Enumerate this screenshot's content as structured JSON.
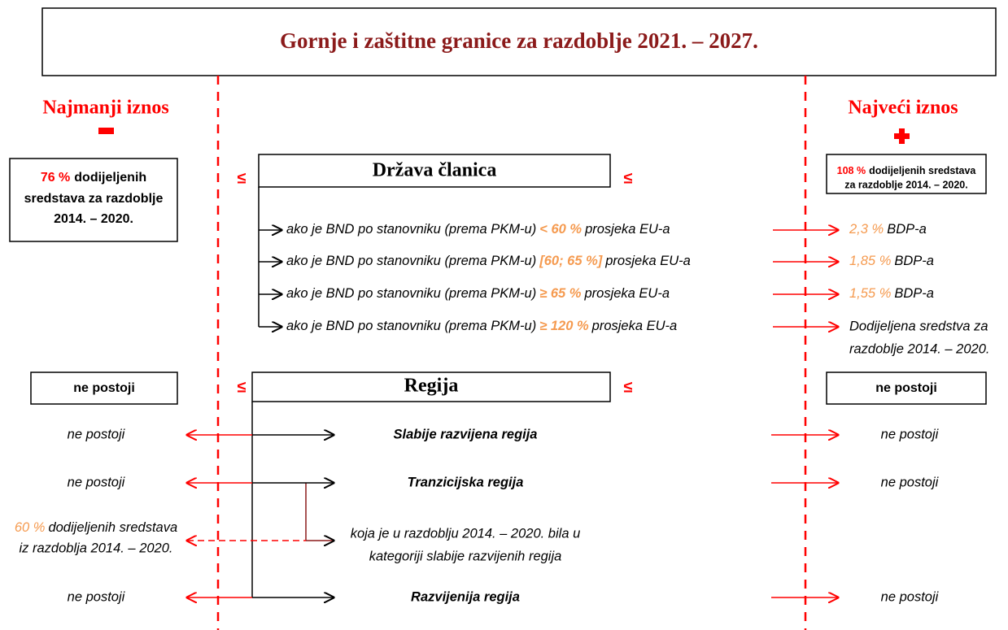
{
  "title": "Gornje i zaštitne granice za razdoblje 2021. – 2027.",
  "min_label": "Najmanji iznos",
  "max_label": "Najveći iznos",
  "leq": "≤",
  "member_state": {
    "label": "Država članica",
    "min_box": {
      "highlight": "76 %",
      "lines": [
        "dodijeljenih",
        "sredstava za razdoblje",
        "2014. – 2020."
      ]
    },
    "max_box": {
      "highlight": "108 %",
      "lines": [
        "dodijeljenih sredstava",
        "za razdoblje 2014. – 2020."
      ]
    },
    "rows": [
      {
        "prefix": "ako je BND po stanovniku (prema PKM-u)",
        "threshold": "< 60 %",
        "suffix": "prosjeka EU-a",
        "result_value": "2,3 %",
        "result_text": "BDP-a"
      },
      {
        "prefix": "ako je BND po stanovniku (prema PKM-u)",
        "threshold": "[60; 65 %]",
        "suffix": "prosjeka EU-a",
        "result_value": "1,85 %",
        "result_text": "BDP-a"
      },
      {
        "prefix": "ako je BND po stanovniku (prema PKM-u)",
        "threshold": "≥ 65 %",
        "suffix": "prosjeka EU-a",
        "result_value": "1,55 %",
        "result_text": "BDP-a"
      },
      {
        "prefix": "ako je BND po stanovniku (prema PKM-u)",
        "threshold": "≥ 120 %",
        "suffix": "prosjeka EU-a",
        "result_lines": [
          "Dodijeljena sredstva za",
          "razdoblje 2014. – 2020."
        ]
      }
    ]
  },
  "region": {
    "label": "Regija",
    "min_box": "ne postoji",
    "max_box": "ne postoji",
    "rows": [
      {
        "name": "Slabije razvijena regija",
        "min": "ne postoji",
        "max": "ne postoji"
      },
      {
        "name": "Tranzicijska regija",
        "min": "ne postoji",
        "max": "ne postoji"
      },
      {
        "name_lines": [
          "koja je u razdoblju 2014. – 2020. bila u",
          "kategoriji slabije razvijenih regija"
        ],
        "min_highlight": "60 %",
        "min_lines": [
          "dodijeljenih sredstava",
          "iz razdoblja 2014. – 2020."
        ]
      },
      {
        "name": "Razvijenija regija",
        "min": "ne postoji",
        "max": "ne postoji"
      }
    ]
  }
}
